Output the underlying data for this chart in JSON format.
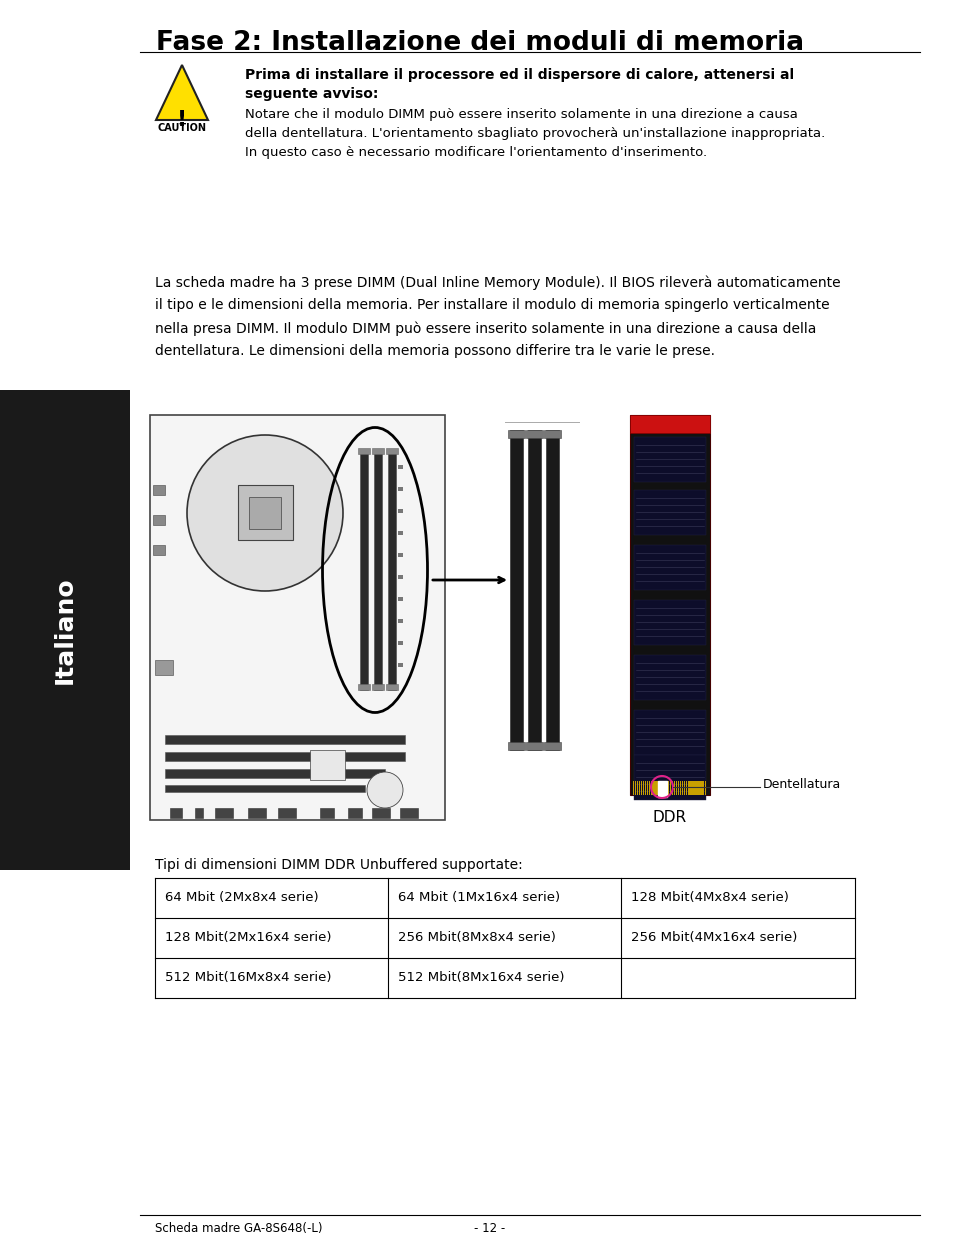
{
  "title": "Fase 2: Installazione dei moduli di memoria",
  "caution_bold_line1": "Prima di installare il processore ed il dispersore di calore, attenersi al",
  "caution_bold_line2": "seguente avviso:",
  "caution_normal_lines": [
    "Notare che il modulo DIMM può essere inserito solamente in una direzione a causa",
    "della dentellatura. L'orientamento sbagliato provocherà un'installazione inappropriata.",
    "In questo caso è necessario modificare l'orientamento d'inserimento."
  ],
  "body_lines": [
    "La scheda madre ha 3 prese DIMM (Dual Inline Memory Module). Il BIOS rileverà automaticamente",
    "il tipo e le dimensioni della memoria. Per installare il modulo di memoria spingerlo verticalmente",
    "nella presa DIMM. Il modulo DIMM può essere inserito solamente in una direzione a causa della",
    "dentellatura. Le dimensioni della memoria possono differire tra le varie le prese."
  ],
  "table_title": "Tipi di dimensioni DIMM DDR Unbuffered supportate:",
  "table_data": [
    [
      "64 Mbit (2Mx8x4 serie)",
      "64 Mbit (1Mx16x4 serie)",
      "128 Mbit(4Mx8x4 serie)"
    ],
    [
      "128 Mbit(2Mx16x4 serie)",
      "256 Mbit(8Mx8x4 serie)",
      "256 Mbit(4Mx16x4 serie)"
    ],
    [
      "512 Mbit(16Mx8x4 serie)",
      "512 Mbit(8Mx16x4 serie)",
      ""
    ]
  ],
  "footer_left": "Scheda madre GA-8S648(-L)",
  "footer_center": "- 12 -",
  "sidebar_text": "Italiano",
  "dentellatura_label": "Dentellatura",
  "ddr_label": "DDR",
  "bg_color": "#ffffff",
  "text_color": "#000000",
  "sidebar_bg": "#1a1a1a",
  "sidebar_text_color": "#ffffff"
}
